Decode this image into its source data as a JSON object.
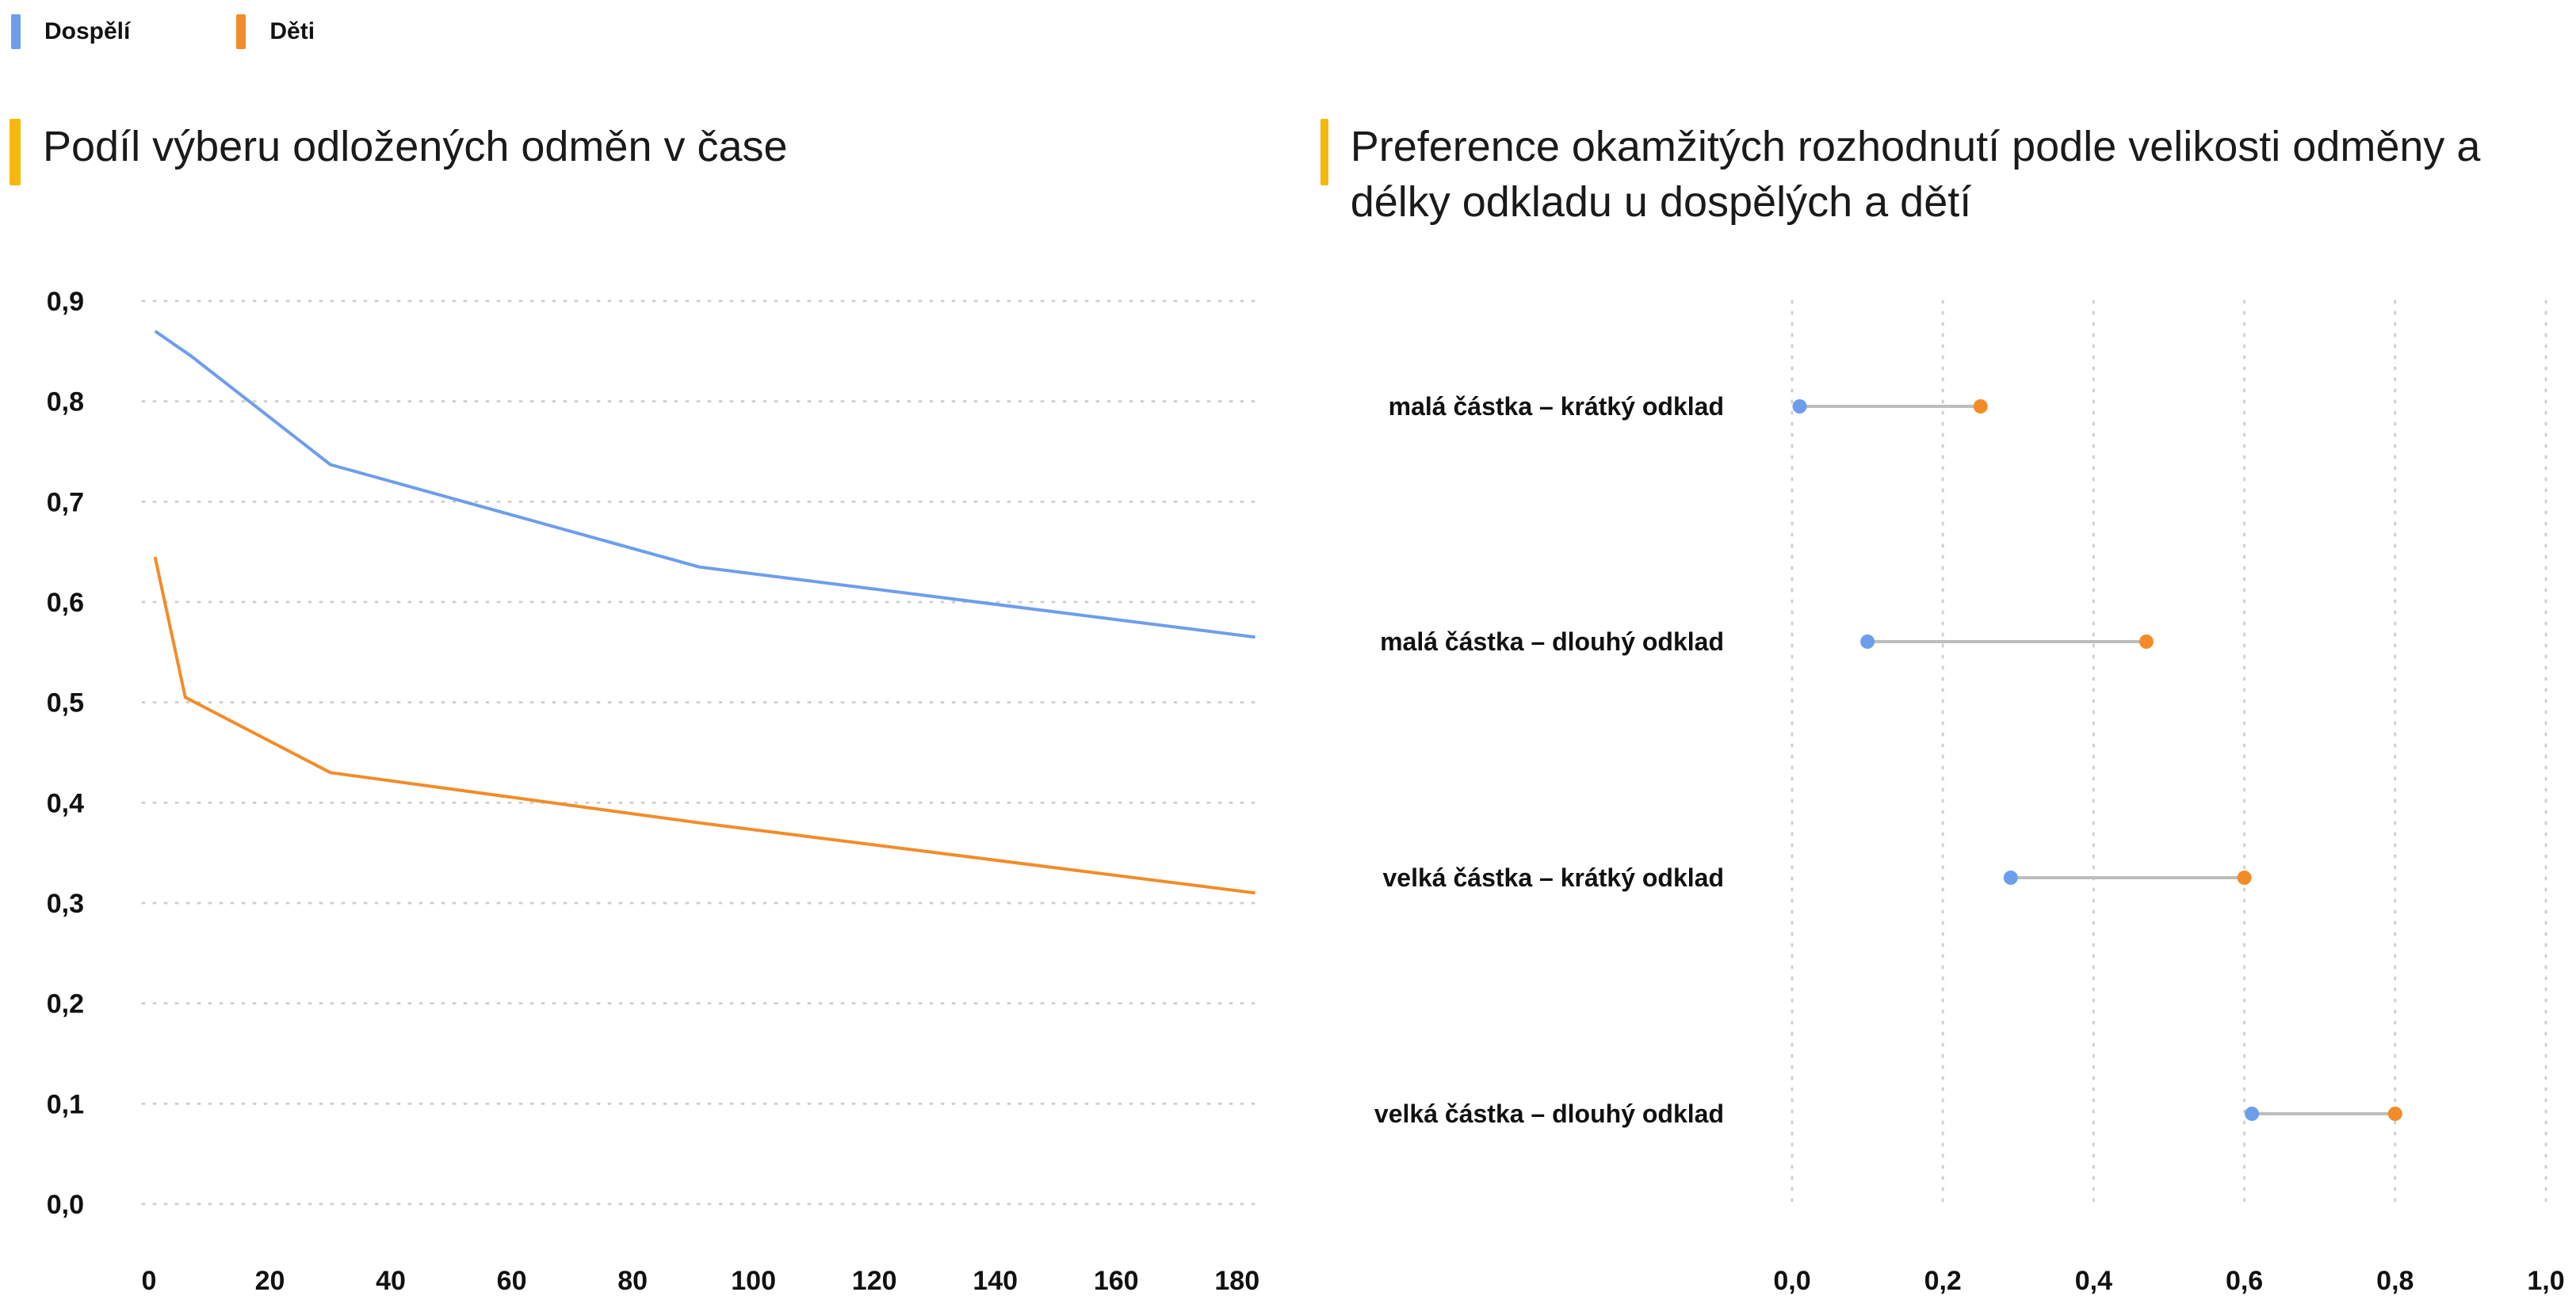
{
  "legend": {
    "items": [
      {
        "label": "Dospělí",
        "color": "#6d9eeb"
      },
      {
        "label": "Děti",
        "color": "#f28c28"
      }
    ]
  },
  "colors": {
    "accent_bar": "#f5b80c",
    "connector": "#bdbdbd",
    "grid": "#cfcfcf"
  },
  "chart_data": [
    {
      "type": "line",
      "title": "Podíl výberu odložených odměn v čase",
      "xlabel": "",
      "ylabel": "",
      "xlim": [
        0,
        182
      ],
      "ylim": [
        0,
        0.9
      ],
      "x_ticks": [
        "0",
        "20",
        "40",
        "60",
        "80",
        "100",
        "120",
        "140",
        "160",
        "180"
      ],
      "y_ticks": [
        "0,0",
        "0,1",
        "0,2",
        "0,3",
        "0,4",
        "0,5",
        "0,6",
        "0,7",
        "0,8",
        "0,9"
      ],
      "grid": "horizontal dotted",
      "series": [
        {
          "name": "Dospělí",
          "color": "#6d9eeb",
          "points": [
            [
              1,
              0.87
            ],
            [
              7,
              0.845
            ],
            [
              30,
              0.737
            ],
            [
              91,
              0.635
            ],
            [
              183,
              0.565
            ]
          ]
        },
        {
          "name": "Děti",
          "color": "#f28c28",
          "points": [
            [
              1,
              0.645
            ],
            [
              6,
              0.505
            ],
            [
              30,
              0.43
            ],
            [
              91,
              0.38
            ],
            [
              183,
              0.31
            ]
          ]
        }
      ]
    },
    {
      "type": "dumbbell",
      "title": "Preference okamžitých rozhodnutí podle velikosti odměny a délky odkladu u dospělých a dětí",
      "xlim": [
        0,
        1.0
      ],
      "x_ticks": [
        "0,0",
        "0,2",
        "0,4",
        "0,6",
        "0,8",
        "1,0"
      ],
      "grid": "vertical dotted",
      "categories": [
        "malá částka – krátký odklad",
        "malá částka – dlouhý odklad",
        "velká částka – krátký odklad",
        "velká částka – dlouhý odklad"
      ],
      "series": [
        {
          "name": "Dospělí",
          "color": "#6d9eeb",
          "values": [
            0.01,
            0.1,
            0.29,
            0.61
          ]
        },
        {
          "name": "Děti",
          "color": "#f28c28",
          "values": [
            0.25,
            0.47,
            0.6,
            0.8
          ]
        }
      ]
    }
  ]
}
